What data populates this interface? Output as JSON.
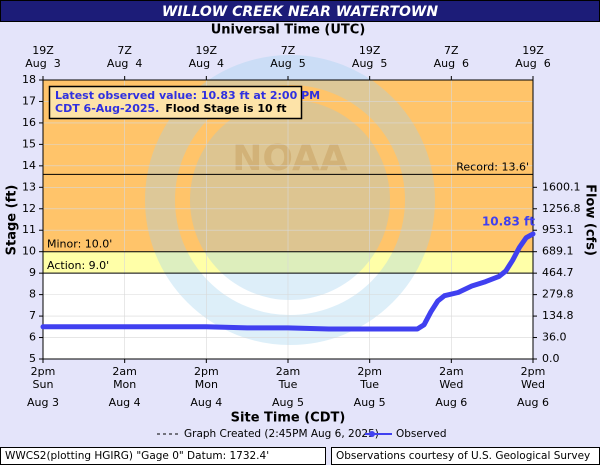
{
  "chart_data": {
    "type": "line",
    "title": "WILLOW CREEK NEAR WATERTOWN",
    "top_axis_title": "Universal Time (UTC)",
    "x_label": "Site Time (CDT)",
    "y_label": "Stage (ft)",
    "y2_label": "Flow (cfs)",
    "watermark": "NOAA",
    "xlim": [
      "2025-08-03 14:00",
      "2025-08-06 14:00"
    ],
    "xticks": [
      {
        "value": "2025-08-03 14:00",
        "time": "2pm",
        "day": "Sun",
        "date": "Aug 3",
        "utc": "19Z",
        "utc_date": "Aug  3"
      },
      {
        "value": "2025-08-04 02:00",
        "time": "2am",
        "day": "Mon",
        "date": "Aug 4",
        "utc": "7Z",
        "utc_date": "Aug  4"
      },
      {
        "value": "2025-08-04 14:00",
        "time": "2pm",
        "day": "Mon",
        "date": "Aug 4",
        "utc": "19Z",
        "utc_date": "Aug  4"
      },
      {
        "value": "2025-08-05 02:00",
        "time": "2am",
        "day": "Tue",
        "date": "Aug 5",
        "utc": "7Z",
        "utc_date": "Aug  5"
      },
      {
        "value": "2025-08-05 14:00",
        "time": "2pm",
        "day": "Tue",
        "date": "Aug 5",
        "utc": "19Z",
        "utc_date": "Aug  5"
      },
      {
        "value": "2025-08-06 02:00",
        "time": "2am",
        "day": "Wed",
        "date": "Aug 6",
        "utc": "7Z",
        "utc_date": "Aug  6"
      },
      {
        "value": "2025-08-06 14:00",
        "time": "2pm",
        "day": "Wed",
        "date": "Aug 6",
        "utc": "19Z",
        "utc_date": "Aug  6"
      }
    ],
    "ylim": [
      5,
      18
    ],
    "yticks": [
      5,
      6,
      7,
      8,
      9,
      10,
      11,
      12,
      13,
      14,
      15,
      16,
      17,
      18
    ],
    "flow_ticks": [
      {
        "stage": 5,
        "label": "0.0"
      },
      {
        "stage": 6,
        "label": "36.0"
      },
      {
        "stage": 7,
        "label": "134.8"
      },
      {
        "stage": 8,
        "label": "279.8"
      },
      {
        "stage": 9,
        "label": "464.7"
      },
      {
        "stage": 10,
        "label": "689.1"
      },
      {
        "stage": 11,
        "label": "953.1"
      },
      {
        "stage": 12,
        "label": "1256.8"
      },
      {
        "stage": 13,
        "label": "1600.1"
      }
    ],
    "grid": true,
    "bands": [
      {
        "from": 10,
        "to": 18,
        "color": "#ffc46a"
      },
      {
        "from": 9,
        "to": 10,
        "color": "#ffffa8"
      }
    ],
    "flood_levels": [
      {
        "value": 13.6,
        "label": "Record: 13.6'",
        "side": "right"
      },
      {
        "value": 10,
        "label": "Minor: 10.0'",
        "side": "left"
      },
      {
        "value": 9,
        "label": "Action: 9.0'",
        "side": "left"
      }
    ],
    "series": [
      {
        "name": "Observed",
        "color": "#4040f0",
        "x": [
          "2025-08-03 14:00",
          "2025-08-03 20:00",
          "2025-08-04 02:00",
          "2025-08-04 08:00",
          "2025-08-04 14:00",
          "2025-08-04 20:00",
          "2025-08-05 02:00",
          "2025-08-05 08:00",
          "2025-08-05 14:00",
          "2025-08-05 18:00",
          "2025-08-05 21:00",
          "2025-08-05 22:00",
          "2025-08-05 23:00",
          "2025-08-06 00:00",
          "2025-08-06 01:00",
          "2025-08-06 03:00",
          "2025-08-06 05:00",
          "2025-08-06 07:00",
          "2025-08-06 09:00",
          "2025-08-06 10:00",
          "2025-08-06 11:00",
          "2025-08-06 12:00",
          "2025-08-06 13:00",
          "2025-08-06 14:00"
        ],
        "values": [
          6.5,
          6.5,
          6.5,
          6.5,
          6.5,
          6.45,
          6.45,
          6.4,
          6.4,
          6.4,
          6.4,
          6.6,
          7.2,
          7.7,
          7.95,
          8.1,
          8.4,
          8.6,
          8.85,
          9.1,
          9.6,
          10.2,
          10.65,
          10.83
        ],
        "end_label": "10.83 ft"
      }
    ],
    "info_line1": "Latest observed value: 10.83 ft at 2:00 PM",
    "info_line2": "CDT 6-Aug-2025.",
    "info_flood": "Flood Stage is 10 ft",
    "graph_created": "Graph Created (2:45PM Aug 6, 2025)",
    "footer_left": "WWCS2(plotting HGIRG) \"Gage 0\" Datum: 1732.4'",
    "footer_right": "Observations courtesy of U.S. Geological Survey"
  }
}
